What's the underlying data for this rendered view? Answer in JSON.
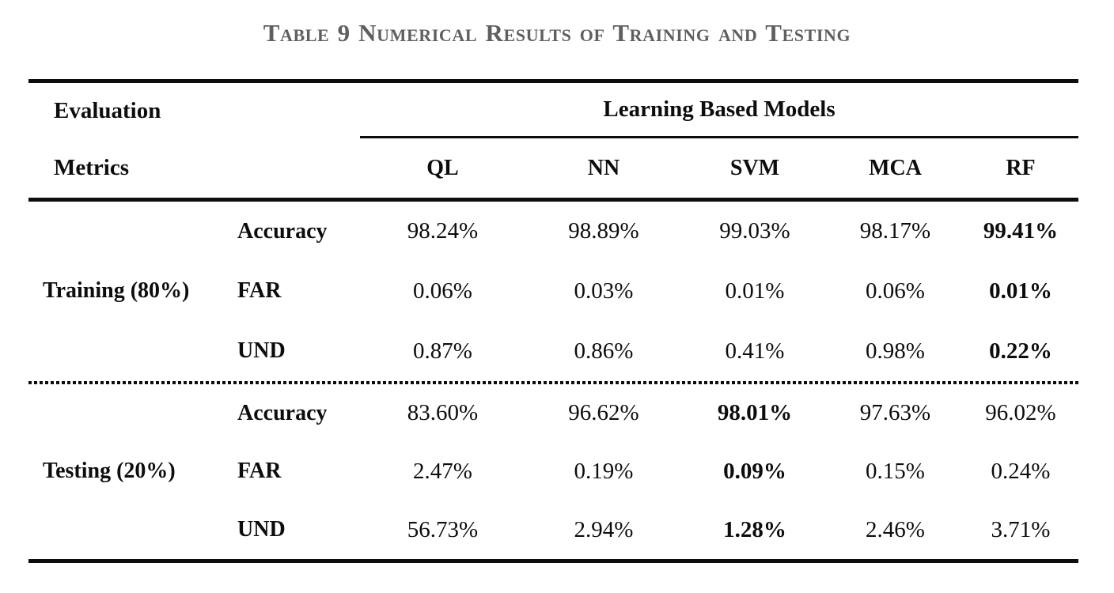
{
  "caption": {
    "text": "Table 9 Numerical Results of Training and Testing",
    "color": "#5f5f5f"
  },
  "table": {
    "colors": {
      "text": "#0d0d0d",
      "rule": "#0d0d0d"
    },
    "header": {
      "row_label_line1": "Evaluation",
      "row_label_line2": "Metrics",
      "group_label": "Learning Based Models",
      "models": [
        "QL",
        "NN",
        "SVM",
        "MCA",
        "RF"
      ]
    },
    "sections": [
      {
        "label": "Training (80%)",
        "rows": [
          {
            "metric": "Accuracy",
            "values": [
              "98.24%",
              "98.89%",
              "99.03%",
              "98.17%",
              "99.41%"
            ],
            "bold": [
              false,
              false,
              false,
              false,
              true
            ]
          },
          {
            "metric": "FAR",
            "values": [
              "0.06%",
              "0.03%",
              "0.01%",
              "0.06%",
              "0.01%"
            ],
            "bold": [
              false,
              false,
              false,
              false,
              true
            ]
          },
          {
            "metric": "UND",
            "values": [
              "0.87%",
              "0.86%",
              "0.41%",
              "0.98%",
              "0.22%"
            ],
            "bold": [
              false,
              false,
              false,
              false,
              true
            ]
          }
        ]
      },
      {
        "label": "Testing (20%)",
        "rows": [
          {
            "metric": "Accuracy",
            "values": [
              "83.60%",
              "96.62%",
              "98.01%",
              "97.63%",
              "96.02%"
            ],
            "bold": [
              false,
              false,
              true,
              false,
              false
            ]
          },
          {
            "metric": "FAR",
            "values": [
              "2.47%",
              "0.19%",
              "0.09%",
              "0.15%",
              "0.24%"
            ],
            "bold": [
              false,
              false,
              true,
              false,
              false
            ]
          },
          {
            "metric": "UND",
            "values": [
              "56.73%",
              "2.94%",
              "1.28%",
              "2.46%",
              "3.71%"
            ],
            "bold": [
              false,
              false,
              true,
              false,
              false
            ]
          }
        ]
      }
    ]
  }
}
